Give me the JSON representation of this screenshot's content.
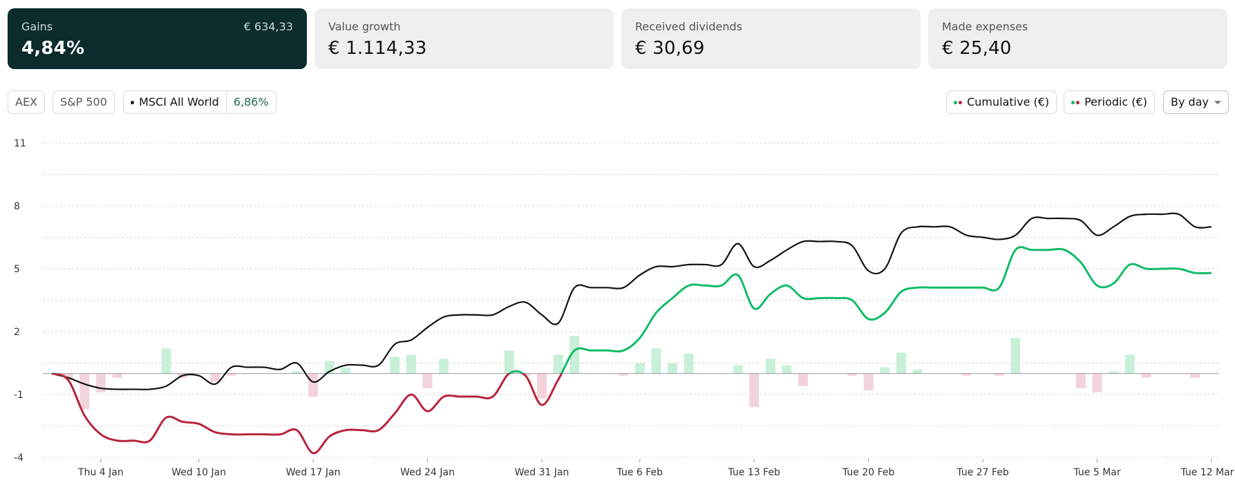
{
  "cards": {
    "gains": {
      "label": "Gains",
      "value": "4,84%",
      "side": "€ 634,33"
    },
    "value_growth": {
      "label": "Value growth",
      "value": "€ 1.114,33"
    },
    "dividends": {
      "label": "Received dividends",
      "value": "€ 30,69"
    },
    "expenses": {
      "label": "Made expenses",
      "value": "€ 25,40"
    }
  },
  "benchmarks": {
    "aex": "AEX",
    "sp500": "S&P 500",
    "msci": {
      "label": "MSCI All World",
      "value": "6,86%"
    }
  },
  "toggles": {
    "cumulative": "Cumulative (€)",
    "periodic": "Periodic (€)",
    "granularity": "By day"
  },
  "colors": {
    "positive": "#11bb66",
    "negative": "#b8233a",
    "benchmark": "#111111",
    "positive_bar": "#c8f0d8",
    "negative_bar": "#f3d3db",
    "dark_card": "#0b2b2c"
  },
  "chart_data": {
    "type": "line",
    "y_ticks": [
      "11",
      "8",
      "5",
      "2",
      "-1",
      "-4"
    ],
    "ylim": [
      -4,
      11
    ],
    "x_tick_labels": [
      "Thu 4 Jan",
      "Wed 10 Jan",
      "Wed 17 Jan",
      "Wed 24 Jan",
      "Wed 31 Jan",
      "Tue 6 Feb",
      "Tue 13 Feb",
      "Tue 20 Feb",
      "Tue 27 Feb",
      "Tue 5 Mar",
      "Tue 12 Mar"
    ],
    "x_tick_days": [
      3,
      9,
      16,
      23,
      30,
      36,
      43,
      50,
      57,
      64,
      71
    ],
    "x_range": [
      0,
      71
    ],
    "series": [
      {
        "name": "MSCI All World",
        "points": [
          [
            0,
            0
          ],
          [
            1,
            -0.2
          ],
          [
            2,
            -0.5
          ],
          [
            3,
            -0.7
          ],
          [
            4,
            -0.75
          ],
          [
            5,
            -0.75
          ],
          [
            6,
            -0.75
          ],
          [
            7,
            -0.6
          ],
          [
            8,
            -0.1
          ],
          [
            9,
            -0.1
          ],
          [
            10,
            -0.5
          ],
          [
            11,
            0.3
          ],
          [
            12,
            0.3
          ],
          [
            13,
            0.3
          ],
          [
            14,
            0.2
          ],
          [
            15,
            0.5
          ],
          [
            16,
            -0.4
          ],
          [
            17,
            0.1
          ],
          [
            18,
            0.4
          ],
          [
            19,
            0.4
          ],
          [
            20,
            0.4
          ],
          [
            21,
            1.4
          ],
          [
            22,
            1.6
          ],
          [
            23,
            2.2
          ],
          [
            24,
            2.7
          ],
          [
            25,
            2.8
          ],
          [
            26,
            2.8
          ],
          [
            27,
            2.8
          ],
          [
            28,
            3.2
          ],
          [
            29,
            3.4
          ],
          [
            30,
            2.8
          ],
          [
            31,
            2.4
          ],
          [
            32,
            4.1
          ],
          [
            33,
            4.1
          ],
          [
            34,
            4.1
          ],
          [
            35,
            4.1
          ],
          [
            36,
            4.7
          ],
          [
            37,
            5.1
          ],
          [
            38,
            5.1
          ],
          [
            39,
            5.2
          ],
          [
            40,
            5.2
          ],
          [
            41,
            5.2
          ],
          [
            42,
            6.2
          ],
          [
            43,
            5.1
          ],
          [
            44,
            5.4
          ],
          [
            45,
            5.9
          ],
          [
            46,
            6.3
          ],
          [
            47,
            6.3
          ],
          [
            48,
            6.3
          ],
          [
            49,
            6.1
          ],
          [
            50,
            4.9
          ],
          [
            51,
            5.0
          ],
          [
            52,
            6.7
          ],
          [
            53,
            7.0
          ],
          [
            54,
            7.0
          ],
          [
            55,
            7.0
          ],
          [
            56,
            6.6
          ],
          [
            57,
            6.5
          ],
          [
            58,
            6.4
          ],
          [
            59,
            6.6
          ],
          [
            60,
            7.4
          ],
          [
            61,
            7.4
          ],
          [
            62,
            7.4
          ],
          [
            63,
            7.3
          ],
          [
            64,
            6.6
          ],
          [
            65,
            7.0
          ],
          [
            66,
            7.5
          ],
          [
            67,
            7.6
          ],
          [
            68,
            7.6
          ],
          [
            69,
            7.6
          ],
          [
            70,
            7.0
          ],
          [
            71,
            7.0
          ]
        ]
      },
      {
        "name": "Cumulative (€)",
        "points": [
          [
            0,
            0
          ],
          [
            1,
            -0.3
          ],
          [
            2,
            -2.0
          ],
          [
            3,
            -2.9
          ],
          [
            4,
            -3.2
          ],
          [
            5,
            -3.2
          ],
          [
            6,
            -3.2
          ],
          [
            7,
            -2.1
          ],
          [
            8,
            -2.3
          ],
          [
            9,
            -2.4
          ],
          [
            10,
            -2.8
          ],
          [
            11,
            -2.9
          ],
          [
            12,
            -2.9
          ],
          [
            13,
            -2.9
          ],
          [
            14,
            -2.9
          ],
          [
            15,
            -2.7
          ],
          [
            16,
            -3.8
          ],
          [
            17,
            -3.0
          ],
          [
            18,
            -2.7
          ],
          [
            19,
            -2.7
          ],
          [
            20,
            -2.7
          ],
          [
            21,
            -1.9
          ],
          [
            22,
            -1.0
          ],
          [
            23,
            -1.8
          ],
          [
            24,
            -1.1
          ],
          [
            25,
            -1.1
          ],
          [
            26,
            -1.1
          ],
          [
            27,
            -1.1
          ],
          [
            28,
            0
          ],
          [
            29,
            -0.1
          ],
          [
            30,
            -1.5
          ],
          [
            31,
            -0.3
          ],
          [
            32,
            1.1
          ],
          [
            33,
            1.1
          ],
          [
            34,
            1.1
          ],
          [
            35,
            1.1
          ],
          [
            36,
            1.7
          ],
          [
            37,
            2.9
          ],
          [
            38,
            3.6
          ],
          [
            39,
            4.2
          ],
          [
            40,
            4.2
          ],
          [
            41,
            4.2
          ],
          [
            42,
            4.7
          ],
          [
            43,
            3.1
          ],
          [
            44,
            3.8
          ],
          [
            45,
            4.2
          ],
          [
            46,
            3.6
          ],
          [
            47,
            3.6
          ],
          [
            48,
            3.6
          ],
          [
            49,
            3.5
          ],
          [
            50,
            2.6
          ],
          [
            51,
            2.9
          ],
          [
            52,
            3.9
          ],
          [
            53,
            4.1
          ],
          [
            54,
            4.1
          ],
          [
            55,
            4.1
          ],
          [
            56,
            4.1
          ],
          [
            57,
            4.1
          ],
          [
            58,
            4.1
          ],
          [
            59,
            5.9
          ],
          [
            60,
            5.9
          ],
          [
            61,
            5.9
          ],
          [
            62,
            5.9
          ],
          [
            63,
            5.3
          ],
          [
            64,
            4.2
          ],
          [
            65,
            4.3
          ],
          [
            66,
            5.2
          ],
          [
            67,
            5.0
          ],
          [
            68,
            5.0
          ],
          [
            69,
            5.0
          ],
          [
            70,
            4.8
          ],
          [
            71,
            4.8
          ]
        ]
      }
    ],
    "periodic_bars": [
      [
        1,
        -0.3
      ],
      [
        2,
        -1.7
      ],
      [
        3,
        -0.9
      ],
      [
        4,
        -0.2
      ],
      [
        7,
        1.2
      ],
      [
        8,
        -0.2
      ],
      [
        10,
        -0.4
      ],
      [
        11,
        -0.1
      ],
      [
        15,
        0.1
      ],
      [
        16,
        -1.1
      ],
      [
        17,
        0.6
      ],
      [
        18,
        0.3
      ],
      [
        21,
        0.8
      ],
      [
        22,
        0.9
      ],
      [
        23,
        -0.7
      ],
      [
        24,
        0.7
      ],
      [
        28,
        1.1
      ],
      [
        29,
        -0.1
      ],
      [
        30,
        -1.2
      ],
      [
        31,
        0.9
      ],
      [
        32,
        1.8
      ],
      [
        35,
        -0.1
      ],
      [
        36,
        0.5
      ],
      [
        37,
        1.2
      ],
      [
        38,
        0.5
      ],
      [
        39,
        0.95
      ],
      [
        42,
        0.4
      ],
      [
        43,
        -1.6
      ],
      [
        44,
        0.7
      ],
      [
        45,
        0.4
      ],
      [
        46,
        -0.6
      ],
      [
        49,
        -0.1
      ],
      [
        50,
        -0.8
      ],
      [
        51,
        0.3
      ],
      [
        52,
        1.0
      ],
      [
        53,
        0.2
      ],
      [
        56,
        -0.1
      ],
      [
        58,
        -0.1
      ],
      [
        59,
        1.7
      ],
      [
        63,
        -0.7
      ],
      [
        64,
        -0.9
      ],
      [
        65,
        0.1
      ],
      [
        66,
        0.9
      ],
      [
        67,
        -0.2
      ],
      [
        70,
        -0.2
      ]
    ]
  }
}
